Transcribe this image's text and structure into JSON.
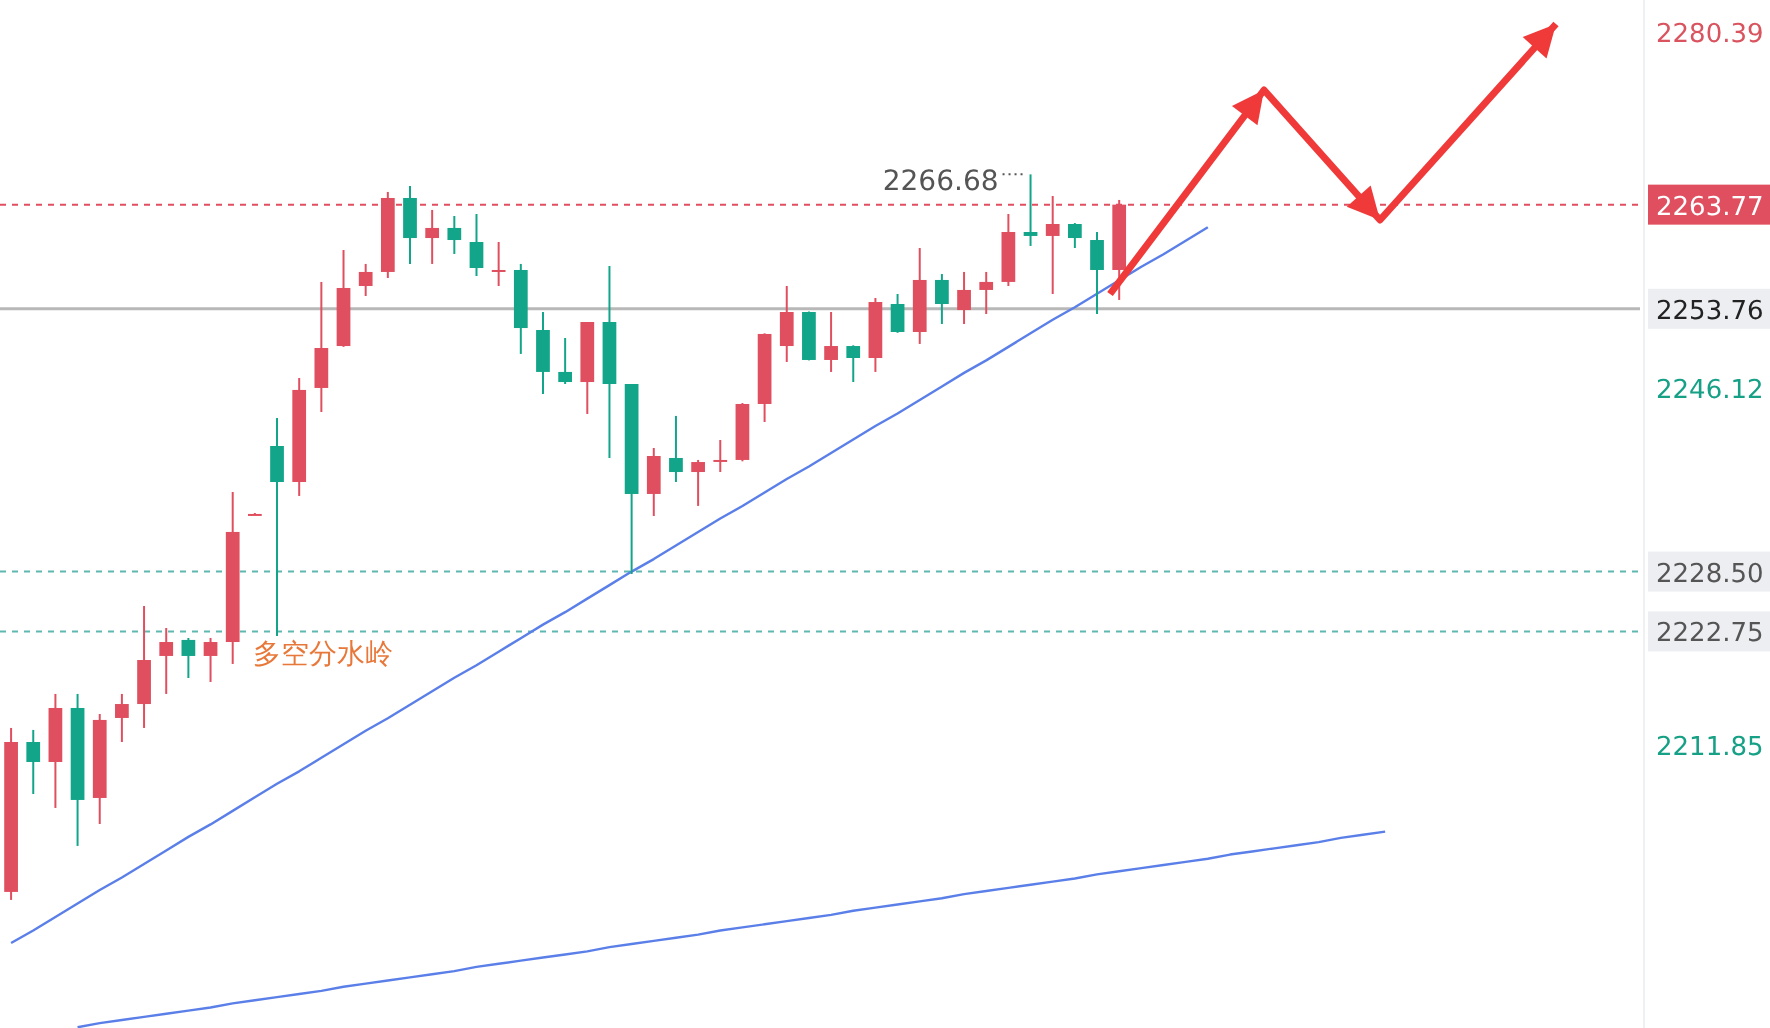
{
  "chart_data": {
    "type": "candlestick",
    "categories": [
      null,
      null,
      null,
      null,
      null,
      null,
      null,
      null,
      null,
      null,
      null,
      null,
      null,
      null,
      null,
      null,
      null,
      null,
      null,
      null,
      null,
      null,
      null,
      null,
      null,
      null,
      null,
      null,
      null,
      null,
      null,
      null,
      null,
      null,
      null,
      null,
      null,
      null,
      null,
      null,
      null,
      null,
      null,
      null,
      null,
      null,
      null,
      null,
      null,
      null,
      null,
      null,
      null,
      null,
      null,
      null,
      null,
      null,
      null,
      null,
      null,
      null,
      null,
      null,
      null,
      null,
      null,
      null,
      null,
      null,
      null,
      null,
      null,
      null
    ],
    "ylim": [
      2184.63,
      2283.44
    ],
    "yticks": [
      2280.39,
      2263.77,
      2253.76,
      2246.12,
      {
        "value": 2228.5,
        "label": "2228.50"
      },
      2222.75,
      2211.85
    ],
    "tick_labels": "y",
    "series": [
      {
        "type": "candlestick",
        "ohlc": [
          [
            2197.71,
            2213.47,
            2196.94,
            2212.12
          ],
          [
            2212.12,
            2213.28,
            2207.12,
            2210.2
          ],
          [
            2210.2,
            2216.74,
            2205.78,
            2215.39
          ],
          [
            2215.39,
            2216.74,
            2202.13,
            2206.55
          ],
          [
            2206.74,
            2214.81,
            2204.24,
            2214.24
          ],
          [
            2214.43,
            2216.74,
            2212.12,
            2215.77
          ],
          [
            2215.77,
            2225.19,
            2213.47,
            2220.0
          ],
          [
            2220.39,
            2223.08,
            2216.74,
            2221.73
          ],
          [
            2221.93,
            2222.12,
            2218.27,
            2220.39
          ],
          [
            2220.39,
            2222.12,
            2217.89,
            2221.73
          ],
          [
            2221.73,
            2236.15,
            2219.62,
            2232.31
          ],
          [
            2233.98,
            2234.13,
            2233.94,
            2234.04
          ],
          [
            2240.57,
            2243.26,
            2222.31,
            2237.11
          ],
          [
            2237.11,
            2247.11,
            2235.77,
            2245.96
          ],
          [
            2246.15,
            2256.34,
            2243.84,
            2249.99
          ],
          [
            2250.18,
            2259.41,
            2250.1,
            2255.76
          ],
          [
            2255.95,
            2258.07,
            2254.99,
            2257.3
          ],
          [
            2257.3,
            2264.99,
            2256.72,
            2264.41
          ],
          [
            2264.41,
            2265.56,
            2258.07,
            2260.56
          ],
          [
            2260.56,
            2263.26,
            2258.07,
            2261.53
          ],
          [
            2261.53,
            2262.68,
            2259.03,
            2260.37
          ],
          [
            2260.18,
            2262.87,
            2256.91,
            2257.68
          ],
          [
            2257.39,
            2260.18,
            2255.95,
            2257.49
          ],
          [
            2257.49,
            2258.07,
            2249.42,
            2251.91
          ],
          [
            2251.72,
            2253.45,
            2245.57,
            2247.69
          ],
          [
            2247.69,
            2250.95,
            2246.53,
            2246.72
          ],
          [
            2246.72,
            2252.49,
            2243.65,
            2252.49
          ],
          [
            2252.49,
            2257.87,
            2239.42,
            2246.53
          ],
          [
            2246.53,
            2246.53,
            2228.27,
            2235.96
          ],
          [
            2235.96,
            2240.38,
            2233.84,
            2239.61
          ],
          [
            2239.42,
            2243.46,
            2237.11,
            2238.07
          ],
          [
            2238.07,
            2239.23,
            2234.81,
            2239.03
          ],
          [
            2239.13,
            2241.15,
            2238.07,
            2239.23
          ],
          [
            2239.23,
            2244.7,
            2239.1,
            2244.61
          ],
          [
            2244.61,
            2251.4,
            2242.88,
            2251.34
          ],
          [
            2250.18,
            2255.95,
            2248.65,
            2253.45
          ],
          [
            2253.45,
            2253.5,
            2248.8,
            2248.84
          ],
          [
            2248.84,
            2253.45,
            2247.69,
            2250.18
          ],
          [
            2250.18,
            2250.25,
            2246.72,
            2249.03
          ],
          [
            2249.03,
            2254.8,
            2247.69,
            2254.41
          ],
          [
            2254.22,
            2255.18,
            2251.45,
            2251.53
          ],
          [
            2251.53,
            2259.6,
            2250.38,
            2256.53
          ],
          [
            2256.53,
            2257.1,
            2252.3,
            2254.22
          ],
          [
            2253.64,
            2257.3,
            2252.3,
            2255.57
          ],
          [
            2255.57,
            2257.3,
            2253.26,
            2256.34
          ],
          [
            2256.34,
            2262.87,
            2255.95,
            2261.14
          ],
          [
            2261.14,
            2266.68,
            2259.8,
            2260.76
          ],
          [
            2260.76,
            2264.6,
            2255.18,
            2261.91
          ],
          [
            2261.91,
            2262.0,
            2259.6,
            2260.56
          ],
          [
            2260.37,
            2261.14,
            2253.26,
            2257.49
          ],
          [
            2257.49,
            2264.22,
            2254.61,
            2263.77
          ],
          null,
          null,
          null,
          null,
          null,
          null,
          null,
          null,
          null,
          null,
          null,
          null,
          null,
          null,
          null,
          null,
          null,
          null,
          null,
          null,
          null,
          null,
          null
        ],
        "colors": [
          "#e04f5f",
          "#13a589",
          "#e04f5f",
          "#13a589",
          "#e04f5f",
          "#e04f5f",
          "#e04f5f",
          "#e04f5f",
          "#13a589",
          "#e04f5f",
          "#e04f5f",
          "#e04f5f",
          "#13a589",
          "#e04f5f",
          "#e04f5f",
          "#e04f5f",
          "#e04f5f",
          "#e04f5f",
          "#13a589",
          "#e04f5f",
          "#13a589",
          "#13a589",
          "#e04f5f",
          "#13a589",
          "#13a589",
          "#13a589",
          "#e04f5f",
          "#13a589",
          "#13a589",
          "#e04f5f",
          "#13a589",
          "#e04f5f",
          "#e04f5f",
          "#e04f5f",
          "#e04f5f",
          "#e04f5f",
          "#13a589",
          "#e04f5f",
          "#13a589",
          "#e04f5f",
          "#13a589",
          "#e04f5f",
          "#13a589",
          "#e04f5f",
          "#e04f5f",
          "#e04f5f",
          "#13a589",
          "#e04f5f",
          "#13a589",
          "#13a589",
          "#e04f5f",
          null,
          null,
          null,
          null,
          null,
          null,
          null,
          null,
          null,
          null,
          null,
          null,
          null,
          null,
          null,
          null,
          null,
          null,
          null,
          null,
          null,
          null,
          null
        ]
      },
      {
        "type": "line",
        "color": "#5b7fe8",
        "values": [
          2192.8,
          2194.0,
          2195.3,
          2196.6,
          2197.9,
          2199.1,
          2200.4,
          2201.7,
          2203.0,
          2204.2,
          2205.5,
          2206.8,
          2208.1,
          2209.3,
          2210.6,
          2211.9,
          2213.2,
          2214.4,
          2215.7,
          2217.0,
          2218.3,
          2219.5,
          2220.8,
          2222.1,
          2223.4,
          2224.6,
          2225.9,
          2227.2,
          2228.5,
          2229.7,
          2231.0,
          2232.3,
          2233.6,
          2234.8,
          2236.1,
          2237.4,
          2238.6,
          2239.9,
          2241.2,
          2242.5,
          2243.7,
          2245.0,
          2246.3,
          2247.6,
          2248.8,
          2250.1,
          2251.4,
          2252.7,
          2253.9,
          2255.2,
          2256.5,
          2257.8,
          2259.0,
          2260.3,
          2261.6,
          null,
          null,
          null,
          null,
          null,
          null,
          null,
          null,
          null,
          null,
          null,
          null,
          null,
          null,
          null,
          null,
          null,
          null,
          null
        ]
      },
      {
        "type": "line",
        "color": "#5b7fe8",
        "values": [
          null,
          null,
          null,
          2184.7,
          2185.1,
          2185.4,
          2185.7,
          2186.0,
          2186.3,
          2186.6,
          2187.0,
          2187.3,
          2187.6,
          2187.9,
          2188.2,
          2188.6,
          2188.9,
          2189.2,
          2189.5,
          2189.8,
          2190.1,
          2190.5,
          2190.8,
          2191.1,
          2191.4,
          2191.7,
          2192.0,
          2192.4,
          2192.7,
          2193.0,
          2193.3,
          2193.6,
          2194.0,
          2194.3,
          2194.6,
          2194.9,
          2195.2,
          2195.5,
          2195.9,
          2196.2,
          2196.5,
          2196.8,
          2197.1,
          2197.5,
          2197.8,
          2198.1,
          2198.4,
          2198.7,
          2199.0,
          2199.4,
          2199.7,
          2200.0,
          2200.3,
          2200.6,
          2200.9,
          2201.3,
          2201.6,
          2201.9,
          2202.2,
          2202.5,
          2202.9,
          2203.2,
          2203.5,
          null,
          null,
          null,
          null,
          null,
          null,
          null,
          null,
          null,
          null,
          null
        ]
      }
    ],
    "ref_lines": [
      {
        "axis": "y",
        "value": 2263.77,
        "color": "#e04f5f",
        "line_style": "dashed"
      },
      {
        "axis": "y",
        "value": 2253.76,
        "color": "#b8b8b8",
        "line_style": "solid"
      },
      {
        "axis": "y",
        "value": 2228.5,
        "color": "#5fb8b0",
        "line_style": "dashed"
      },
      {
        "axis": "y",
        "value": 2222.75,
        "color": "#5fb8b0",
        "line_style": "dashed"
      }
    ],
    "annotations": [
      "2266.68",
      {
        "text": "多空分水岭",
        "y": 2222.75
      }
    ]
  }
}
